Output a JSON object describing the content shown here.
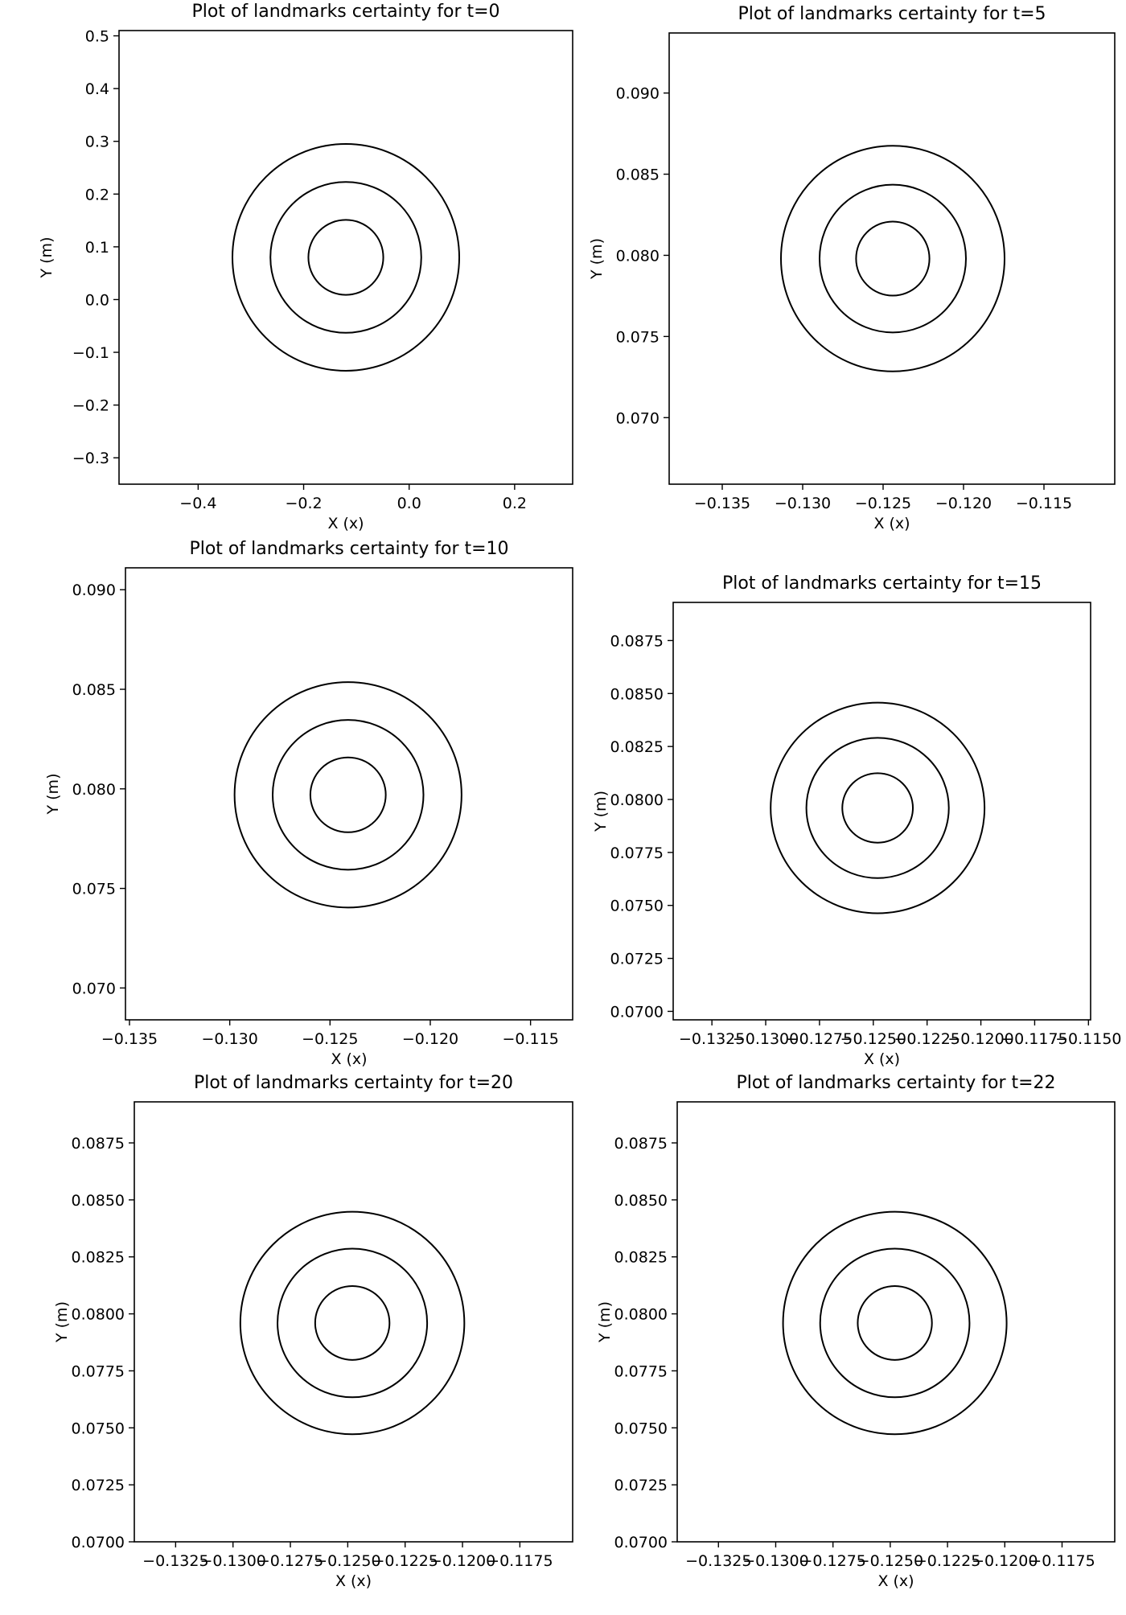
{
  "chart_data": [
    {
      "type": "contour",
      "title": "Plot of landmarks certainty for t=0",
      "xlabel": "X (x)",
      "ylabel": "Y (m)",
      "xlim": [
        -0.55,
        0.31
      ],
      "ylim": [
        -0.35,
        0.51
      ],
      "xticks": [
        -0.4,
        -0.2,
        0.0,
        0.2
      ],
      "xtick_labels": [
        "−0.4",
        "−0.2",
        "0.0",
        "0.2"
      ],
      "yticks": [
        -0.3,
        -0.2,
        -0.1,
        0.0,
        0.1,
        0.2,
        0.3,
        0.4,
        0.5
      ],
      "ytick_labels": [
        "−0.3",
        "−0.2",
        "−0.1",
        "0.0",
        "0.1",
        "0.2",
        "0.3",
        "0.4",
        "0.5"
      ],
      "center": [
        -0.12,
        0.08
      ],
      "radii": [
        0.071,
        0.143,
        0.215
      ]
    },
    {
      "type": "contour",
      "title": "Plot of landmarks certainty for t=5",
      "xlabel": "X (x)",
      "ylabel": "Y (m)",
      "xlim": [
        -0.1383,
        -0.1106
      ],
      "ylim": [
        0.0659,
        0.0937
      ],
      "xticks": [
        -0.135,
        -0.13,
        -0.125,
        -0.12,
        -0.115
      ],
      "xtick_labels": [
        "−0.135",
        "−0.130",
        "−0.125",
        "−0.120",
        "−0.115"
      ],
      "yticks": [
        0.07,
        0.075,
        0.08,
        0.085,
        0.09
      ],
      "ytick_labels": [
        "0.070",
        "0.075",
        "0.080",
        "0.085",
        "0.090"
      ],
      "center": [
        -0.1244,
        0.0798
      ],
      "radii": [
        0.00228,
        0.00455,
        0.00695
      ]
    },
    {
      "type": "contour",
      "title": "Plot of landmarks certainty for t=10",
      "xlabel": "X (x)",
      "ylabel": "Y (m)",
      "xlim": [
        -0.1352,
        -0.1129
      ],
      "ylim": [
        0.0684,
        0.0911
      ],
      "xticks": [
        -0.135,
        -0.13,
        -0.125,
        -0.12,
        -0.115
      ],
      "xtick_labels": [
        "−0.135",
        "−0.130",
        "−0.125",
        "−0.120",
        "−0.115"
      ],
      "yticks": [
        0.07,
        0.075,
        0.08,
        0.085,
        0.09
      ],
      "ytick_labels": [
        "0.070",
        "0.075",
        "0.080",
        "0.085",
        "0.090"
      ],
      "center": [
        -0.1241,
        0.0797
      ],
      "radii": [
        0.00188,
        0.00376,
        0.00566
      ]
    },
    {
      "type": "contour",
      "title": "Plot of landmarks certainty for t=15",
      "xlabel": "X (x)",
      "ylabel": "Y (m)",
      "xlim": [
        -0.1343,
        -0.1149
      ],
      "ylim": [
        0.0696,
        0.0893
      ],
      "xticks": [
        -0.1325,
        -0.13,
        -0.1275,
        -0.125,
        -0.1225,
        -0.12,
        -0.1175,
        -0.115
      ],
      "xtick_labels": [
        "−0.1325",
        "−0.1300",
        "−0.1275",
        "−0.1250",
        "−0.1225",
        "−0.1200",
        "−0.1175",
        "−0.1150"
      ],
      "yticks": [
        0.07,
        0.0725,
        0.075,
        0.0775,
        0.08,
        0.0825,
        0.085,
        0.0875
      ],
      "ytick_labels": [
        "0.0700",
        "0.0725",
        "0.0750",
        "0.0775",
        "0.0800",
        "0.0825",
        "0.0850",
        "0.0875"
      ],
      "center": [
        -0.1248,
        0.0796
      ],
      "radii": [
        0.00164,
        0.00331,
        0.00497
      ]
    },
    {
      "type": "contour",
      "title": "Plot of landmarks certainty for t=20",
      "xlabel": "X (x)",
      "ylabel": "Y (m)",
      "xlim": [
        -0.1343,
        -0.1152
      ],
      "ylim": [
        0.07,
        0.0893
      ],
      "xticks": [
        -0.1325,
        -0.13,
        -0.1275,
        -0.125,
        -0.1225,
        -0.12,
        -0.1175
      ],
      "xtick_labels": [
        "−0.1325",
        "−0.1300",
        "−0.1275",
        "−0.1250",
        "−0.1225",
        "−0.1200",
        "−0.1175"
      ],
      "yticks": [
        0.07,
        0.0725,
        0.075,
        0.0775,
        0.08,
        0.0825,
        0.085,
        0.0875
      ],
      "ytick_labels": [
        "0.0700",
        "0.0725",
        "0.0750",
        "0.0775",
        "0.0800",
        "0.0825",
        "0.0850",
        "0.0875"
      ],
      "center": [
        -0.1248,
        0.0796
      ],
      "radii": [
        0.00162,
        0.00326,
        0.00488
      ]
    },
    {
      "type": "contour",
      "title": "Plot of landmarks certainty for t=22",
      "xlabel": "X (x)",
      "ylabel": "Y (m)",
      "xlim": [
        -0.1343,
        -0.1152
      ],
      "ylim": [
        0.07,
        0.0893
      ],
      "xticks": [
        -0.1325,
        -0.13,
        -0.1275,
        -0.125,
        -0.1225,
        -0.12,
        -0.1175
      ],
      "xtick_labels": [
        "−0.1325",
        "−0.1300",
        "−0.1275",
        "−0.1250",
        "−0.1225",
        "−0.1200",
        "−0.1175"
      ],
      "yticks": [
        0.07,
        0.0725,
        0.075,
        0.0775,
        0.08,
        0.0825,
        0.085,
        0.0875
      ],
      "ytick_labels": [
        "0.0700",
        "0.0725",
        "0.0750",
        "0.0775",
        "0.0800",
        "0.0825",
        "0.0850",
        "0.0875"
      ],
      "center": [
        -0.1248,
        0.0796
      ],
      "radii": [
        0.00162,
        0.00326,
        0.00488
      ]
    }
  ]
}
